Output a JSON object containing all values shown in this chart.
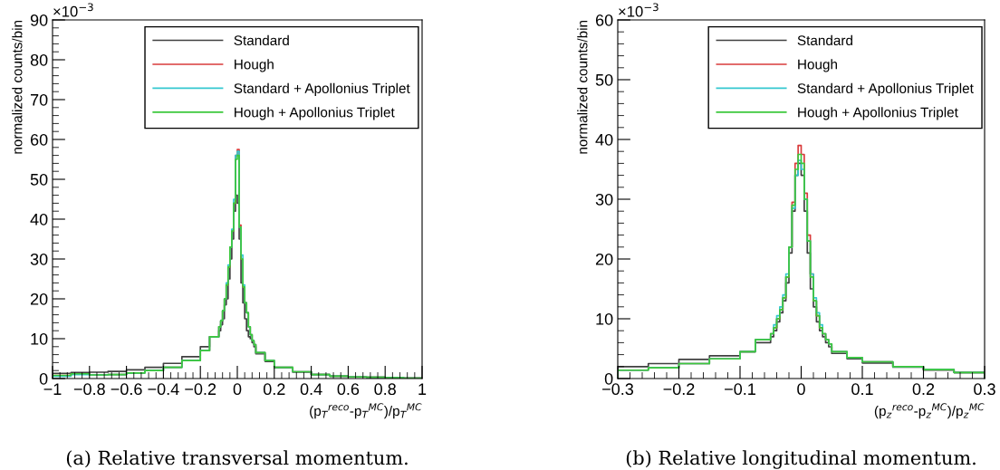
{
  "chart_data": [
    {
      "type": "histogram",
      "xlabel": "(p$_{T}$$^{reco}$-p$_{T}$$^{MC}$)/p$_{T}$$^{MC}$",
      "ylabel": "normalized counts/bin",
      "xlim": [
        -1,
        1
      ],
      "xticks": [
        {
          "value": -1,
          "label": "−1"
        },
        {
          "value": -0.8,
          "label": "−0.8"
        },
        {
          "value": -0.6,
          "label": "−0.6"
        },
        {
          "value": -0.4,
          "label": "−0.4"
        },
        {
          "value": -0.2,
          "label": "−0.2"
        },
        0,
        0.2,
        0.4,
        0.6,
        0.8,
        1
      ],
      "ylim": [
        0,
        90
      ],
      "yticks": [
        0,
        10,
        20,
        30,
        40,
        50,
        60,
        70,
        80,
        90
      ],
      "grid": false,
      "legend": "top",
      "line_style": "solid",
      "annotations": [
        "×10$^{−3}$",
        "(a) Relative transversal momentum."
      ],
      "bins": [
        -1,
        -0.9,
        -0.8,
        -0.7,
        -0.6,
        -0.5,
        -0.4,
        -0.3,
        -0.2,
        -0.15,
        -0.1,
        -0.09,
        -0.08,
        -0.07,
        -0.06,
        -0.05,
        -0.04,
        -0.03,
        -0.02,
        -0.01,
        0,
        0.01,
        0.02,
        0.03,
        0.04,
        0.05,
        0.06,
        0.07,
        0.08,
        0.09,
        0.1,
        0.15,
        0.2,
        0.3,
        0.4,
        0.5,
        0.6,
        0.7,
        0.8,
        0.9,
        1
      ],
      "series": [
        {
          "name": "Standard",
          "color": "#404040",
          "values": [
            1.3,
            1.5,
            1.6,
            1.8,
            2.2,
            2.8,
            3.8,
            5.5,
            8,
            10.5,
            12,
            13.5,
            15,
            18.5,
            20,
            25,
            30,
            35,
            42,
            46,
            44,
            35,
            24,
            19,
            15,
            12,
            10.5,
            10,
            9,
            8,
            6.2,
            4.3,
            2.7,
            1.6,
            1.0,
            0.6,
            0.4,
            0.3,
            0.2,
            0.1
          ]
        },
        {
          "name": "Hough",
          "color": "#d93b3b",
          "values": [
            0.8,
            1.2,
            0.9,
            1.0,
            1.4,
            2.0,
            2.8,
            4.5,
            7,
            10.5,
            13,
            14.5,
            17,
            20,
            23.5,
            28,
            33,
            37,
            44,
            56,
            57.5,
            38.5,
            30,
            23,
            19,
            16.5,
            13,
            11,
            9.5,
            8.5,
            6.5,
            4.5,
            2.8,
            1.7,
            1.0,
            0.6,
            0.4,
            0.3,
            0.2,
            0.1
          ]
        },
        {
          "name": "Standard + Apollonius Triplet",
          "color": "#35c8d0",
          "values": [
            0.6,
            1.0,
            0.9,
            1.0,
            1.4,
            2.0,
            2.8,
            4.5,
            7,
            10.5,
            13,
            14.5,
            17,
            20,
            24,
            28.5,
            33,
            37.5,
            45,
            56,
            57,
            38,
            31,
            23.5,
            19,
            16.5,
            13,
            11,
            9.5,
            8.5,
            6.5,
            4.5,
            2.8,
            1.7,
            1.0,
            0.6,
            0.4,
            0.3,
            0.2,
            0.1
          ]
        },
        {
          "name": "Hough + Apollonius Triplet",
          "color": "#3cc83c",
          "values": [
            0.8,
            1.2,
            0.9,
            1.0,
            1.4,
            2.0,
            2.8,
            4.5,
            7,
            10.5,
            13,
            14.5,
            17,
            20,
            23.5,
            28,
            33,
            37,
            44,
            55,
            56,
            38,
            30,
            23,
            19,
            16.5,
            13,
            11,
            9.5,
            8.5,
            6.5,
            4.5,
            2.8,
            1.7,
            1.0,
            0.6,
            0.4,
            0.3,
            0.2,
            0.1
          ]
        }
      ]
    },
    {
      "type": "histogram",
      "xlabel": "(p$_{z}$$^{reco}$-p$_{z}$$^{MC}$)/p$_{z}$$^{MC}$",
      "ylabel": "normalized counts/bin",
      "xlim": [
        -0.3,
        0.3
      ],
      "xticks": [
        {
          "value": -0.3,
          "label": "−0.3"
        },
        {
          "value": -0.2,
          "label": "−0.2"
        },
        {
          "value": -0.1,
          "label": "−0.1"
        },
        0,
        0.1,
        0.2,
        0.3
      ],
      "ylim": [
        0,
        60
      ],
      "yticks": [
        0,
        10,
        20,
        30,
        40,
        50,
        60
      ],
      "grid": false,
      "legend": "top",
      "line_style": "solid",
      "annotations": [
        "×10$^{−3}$",
        "(b) Relative longitudinal momentum."
      ],
      "bins": [
        -0.3,
        -0.25,
        -0.2,
        -0.15,
        -0.1,
        -0.075,
        -0.05,
        -0.045,
        -0.04,
        -0.035,
        -0.03,
        -0.025,
        -0.02,
        -0.015,
        -0.01,
        -0.005,
        0,
        0.005,
        0.01,
        0.015,
        0.02,
        0.025,
        0.03,
        0.035,
        0.04,
        0.045,
        0.05,
        0.075,
        0.1,
        0.15,
        0.2,
        0.25,
        0.3
      ],
      "series": [
        {
          "name": "Standard",
          "color": "#404040",
          "values": [
            2.0,
            2.5,
            3.2,
            3.8,
            4.5,
            6,
            7,
            8,
            9.5,
            11,
            13,
            16,
            21,
            28,
            34,
            36,
            34,
            28,
            21,
            15,
            12,
            9.5,
            8,
            7,
            6,
            5.3,
            4.2,
            3.3,
            2.6,
            1.9,
            1.4,
            1.0
          ]
        },
        {
          "name": "Hough",
          "color": "#d93b3b",
          "values": [
            1.4,
            1.8,
            2.5,
            3.3,
            4.5,
            6.5,
            7.5,
            8.5,
            10,
            11.5,
            13.5,
            17,
            22,
            29.5,
            36,
            39,
            37.5,
            31,
            24,
            17.5,
            13,
            10.5,
            8.5,
            7.5,
            6.5,
            5.8,
            4.5,
            3.5,
            2.8,
            2.0,
            1.5,
            1.0
          ]
        },
        {
          "name": "Standard + Apollonius Triplet",
          "color": "#35c8d0",
          "values": [
            1.4,
            1.8,
            2.5,
            3.3,
            4.5,
            6.5,
            7.5,
            9,
            10.5,
            12,
            14,
            17.5,
            22,
            28.5,
            34,
            36.5,
            35,
            30,
            23,
            17.5,
            13.5,
            11,
            9,
            7.5,
            6.5,
            5.8,
            4.5,
            3.5,
            2.8,
            2.0,
            1.5,
            1.0
          ]
        },
        {
          "name": "Hough + Apollonius Triplet",
          "color": "#3cc83c",
          "values": [
            1.4,
            1.8,
            2.5,
            3.3,
            4.5,
            6.5,
            7.5,
            8.5,
            10,
            11.5,
            13.5,
            17,
            22,
            29,
            35,
            37.5,
            36,
            30,
            23,
            17,
            13,
            10.5,
            8.5,
            7.5,
            6.5,
            5.8,
            4.5,
            3.5,
            2.8,
            2.0,
            1.5,
            1.0
          ]
        }
      ]
    }
  ]
}
